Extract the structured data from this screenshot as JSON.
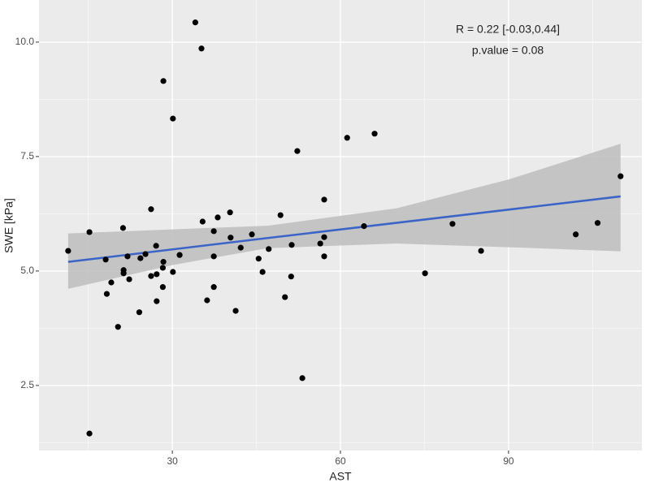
{
  "chart_data": {
    "type": "scatter",
    "x_label": "AST",
    "y_label": "SWE [kPa]",
    "annotations": [
      "R = 0.22 [-0.03,0.44]",
      "p.value = 0.08"
    ],
    "xlim": [
      6.2,
      113.8
    ],
    "ylim": [
      1.08,
      10.92
    ],
    "xticks": [
      30,
      60,
      90
    ],
    "yticks": [
      2.5,
      {
        "value": 5,
        "label": "5.0"
      },
      {
        "value": 7.5,
        "label": "7.5"
      },
      {
        "value": 10,
        "label": "10.0"
      }
    ],
    "grid": true,
    "point_color": "#000000",
    "x": [
      11.4,
      15.2,
      15.2,
      18.1,
      18.3,
      19.1,
      20.3,
      21.2,
      21.3,
      21.3,
      22.0,
      22.3,
      24.1,
      24.3,
      25.2,
      26.2,
      26.2,
      27.1,
      27.2,
      27.2,
      28.3,
      28.3,
      28.4,
      28.4,
      30.1,
      30.1,
      31.3,
      34.1,
      35.2,
      35.4,
      36.2,
      37.4,
      37.4,
      37.4,
      38.1,
      40.3,
      40.4,
      41.3,
      42.2,
      44.2,
      45.4,
      46.1,
      47.2,
      49.3,
      50.1,
      51.2,
      51.3,
      52.3,
      53.2,
      56.4,
      57.1,
      57.1,
      57.1,
      61.2,
      64.2,
      66.1,
      75.1,
      80.0,
      85.1,
      102.0,
      105.9,
      110.0
    ],
    "values": [
      5.44,
      5.85,
      1.45,
      5.25,
      4.5,
      4.75,
      3.78,
      5.94,
      4.95,
      5.02,
      5.32,
      4.82,
      4.1,
      5.28,
      5.37,
      6.35,
      4.89,
      5.55,
      4.34,
      4.93,
      4.65,
      5.07,
      9.15,
      5.2,
      8.33,
      4.98,
      5.35,
      10.43,
      9.86,
      6.08,
      4.36,
      4.65,
      5.87,
      5.32,
      6.17,
      6.28,
      5.73,
      4.13,
      5.51,
      5.8,
      5.27,
      4.98,
      5.48,
      6.22,
      4.43,
      4.88,
      5.57,
      7.62,
      2.66,
      5.6,
      5.32,
      6.56,
      5.74,
      7.91,
      5.98,
      8.0,
      4.95,
      6.03,
      5.44,
      5.8,
      6.05,
      7.07
    ],
    "fit": {
      "color": "#3a64c8",
      "x": [
        11.4,
        47,
        110
      ],
      "values": [
        5.2,
        5.72,
        6.63
      ]
    },
    "band": {
      "color": "#bdbdbd",
      "x": [
        11.4,
        30,
        47,
        70,
        90,
        110
      ],
      "lower": [
        4.61,
        5.13,
        5.5,
        5.6,
        5.52,
        5.43
      ],
      "upper": [
        5.82,
        5.91,
        5.99,
        6.37,
        7.0,
        7.78
      ]
    }
  }
}
